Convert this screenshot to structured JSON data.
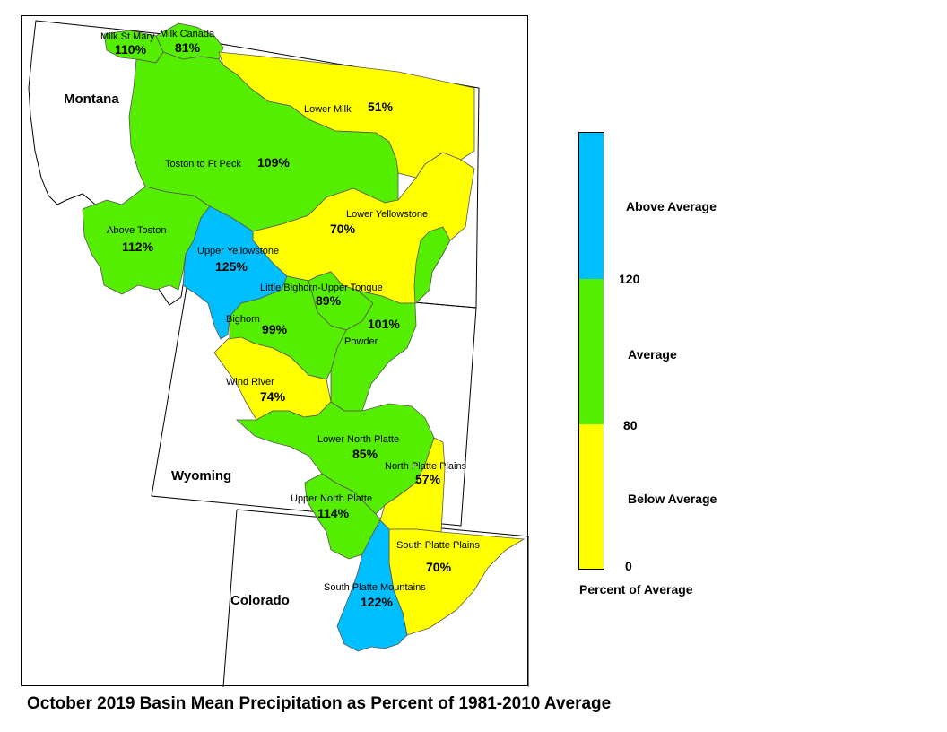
{
  "title": "October 2019 Basin Mean Precipitation as Percent of 1981-2010 Average",
  "colors": {
    "above": "#00bfff",
    "average": "#55ee00",
    "below": "#ffff00",
    "outline": "#000000"
  },
  "states": [
    {
      "id": "montana",
      "label": "Montana"
    },
    {
      "id": "wyoming",
      "label": "Wyoming"
    },
    {
      "id": "colorado",
      "label": "Colorado"
    }
  ],
  "basins": [
    {
      "id": "milk-st-mary",
      "name": "Milk St Mary",
      "pct": "110%",
      "pct_value": 110,
      "category": "average"
    },
    {
      "id": "milk-canada",
      "name": "Milk Canada",
      "pct": "81%",
      "pct_value": 81,
      "category": "average"
    },
    {
      "id": "lower-milk",
      "name": "Lower Milk",
      "pct": "51%",
      "pct_value": 51,
      "category": "below"
    },
    {
      "id": "toston-ft-peck",
      "name": "Toston to Ft Peck",
      "pct": "109%",
      "pct_value": 109,
      "category": "average"
    },
    {
      "id": "lower-yellowstone",
      "name": "Lower Yellowstone",
      "pct": "70%",
      "pct_value": 70,
      "category": "below"
    },
    {
      "id": "above-toston",
      "name": "Above Toston",
      "pct": "112%",
      "pct_value": 112,
      "category": "average"
    },
    {
      "id": "upper-yellowstone",
      "name": "Upper Yellowstone",
      "pct": "125%",
      "pct_value": 125,
      "category": "above"
    },
    {
      "id": "little-bighorn",
      "name": "Little Bighorn-Upper Tongue",
      "pct": "89%",
      "pct_value": 89,
      "category": "average"
    },
    {
      "id": "powder",
      "name": "Powder",
      "pct": "101%",
      "pct_value": 101,
      "category": "average"
    },
    {
      "id": "bighorn",
      "name": "Bighorn",
      "pct": "99%",
      "pct_value": 99,
      "category": "average"
    },
    {
      "id": "wind-river",
      "name": "Wind River",
      "pct": "74%",
      "pct_value": 74,
      "category": "below"
    },
    {
      "id": "lower-north-platte",
      "name": "Lower North Platte",
      "pct": "85%",
      "pct_value": 85,
      "category": "average"
    },
    {
      "id": "north-platte-plains",
      "name": "North Platte Plains",
      "pct": "57%",
      "pct_value": 57,
      "category": "below"
    },
    {
      "id": "upper-north-platte",
      "name": "Upper North Platte",
      "pct": "114%",
      "pct_value": 114,
      "category": "average"
    },
    {
      "id": "south-platte-plains",
      "name": "South Platte Plains",
      "pct": "70%",
      "pct_value": 70,
      "category": "below"
    },
    {
      "id": "south-platte-mountains",
      "name": "South Platte Mountains",
      "pct": "122%",
      "pct_value": 122,
      "category": "above"
    }
  ],
  "legend": {
    "labels": {
      "above": "Above Average",
      "average": "Average",
      "below": "Below Average"
    },
    "breaks": [
      "120",
      "80",
      "0"
    ],
    "caption": "Percent of Average"
  }
}
